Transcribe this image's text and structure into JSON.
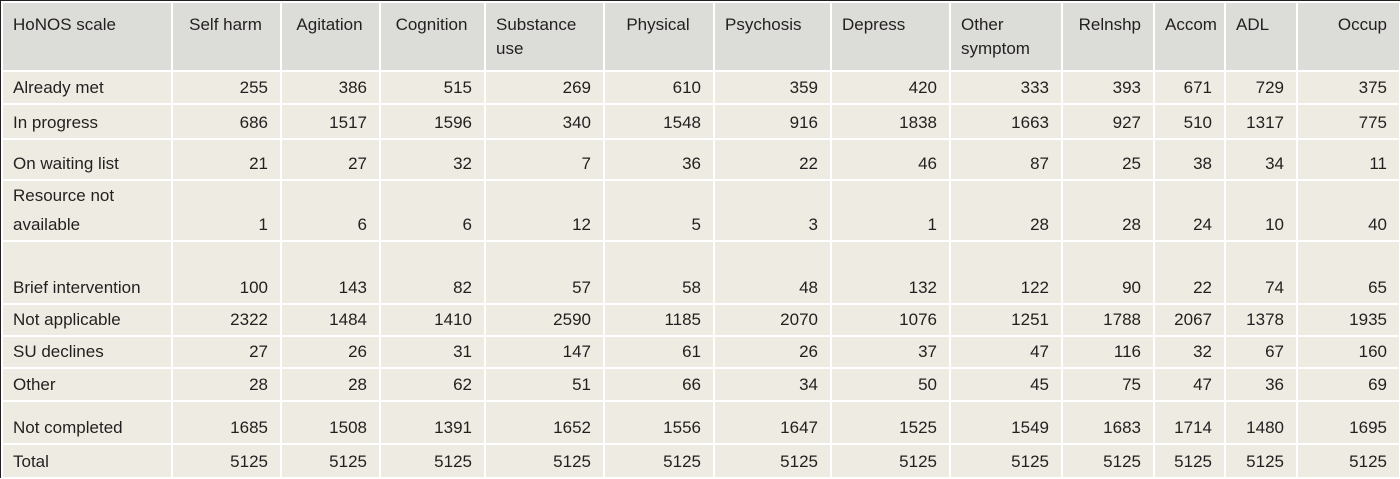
{
  "table": {
    "corner_label": "HoNOS scale",
    "columns": [
      "Self harm",
      "Agitation",
      "Cognition",
      "Substance use",
      "Physical",
      "Psychosis",
      "Depress",
      "Other symptom",
      "Relnshp",
      "Accom",
      "ADL",
      "Occup"
    ],
    "rows": [
      {
        "label": "Already met",
        "values": [
          "255",
          "386",
          "515",
          "269",
          "610",
          "359",
          "420",
          "333",
          "393",
          "671",
          "729",
          "375"
        ]
      },
      {
        "label": "In progress",
        "values": [
          "686",
          "1517",
          "1596",
          "340",
          "1548",
          "916",
          "1838",
          "1663",
          "927",
          "510",
          "1317",
          "775"
        ]
      },
      {
        "label": "On waiting list",
        "values": [
          "21",
          "27",
          "32",
          "7",
          "36",
          "22",
          "46",
          "87",
          "25",
          "38",
          "34",
          "11"
        ]
      },
      {
        "label": "Resource not available",
        "values": [
          "1",
          "6",
          "6",
          "12",
          "5",
          "3",
          "1",
          "28",
          "28",
          "24",
          "10",
          "40"
        ]
      },
      {
        "label": "Brief intervention",
        "values": [
          "100",
          "143",
          "82",
          "57",
          "58",
          "48",
          "132",
          "122",
          "90",
          "22",
          "74",
          "65"
        ]
      },
      {
        "label": "Not applicable",
        "values": [
          "2322",
          "1484",
          "1410",
          "2590",
          "1185",
          "2070",
          "1076",
          "1251",
          "1788",
          "2067",
          "1378",
          "1935"
        ]
      },
      {
        "label": "SU declines",
        "values": [
          "27",
          "26",
          "31",
          "147",
          "61",
          "26",
          "37",
          "47",
          "116",
          "32",
          "67",
          "160"
        ]
      },
      {
        "label": "Other",
        "values": [
          "28",
          "28",
          "62",
          "51",
          "66",
          "34",
          "50",
          "45",
          "75",
          "47",
          "36",
          "69"
        ]
      },
      {
        "label": "Not completed",
        "values": [
          "1685",
          "1508",
          "1391",
          "1652",
          "1556",
          "1647",
          "1525",
          "1549",
          "1683",
          "1714",
          "1480",
          "1695"
        ]
      },
      {
        "label": "Total",
        "values": [
          "5125",
          "5125",
          "5125",
          "5125",
          "5125",
          "5125",
          "5125",
          "5125",
          "5125",
          "5125",
          "5125",
          "5125"
        ]
      }
    ]
  }
}
